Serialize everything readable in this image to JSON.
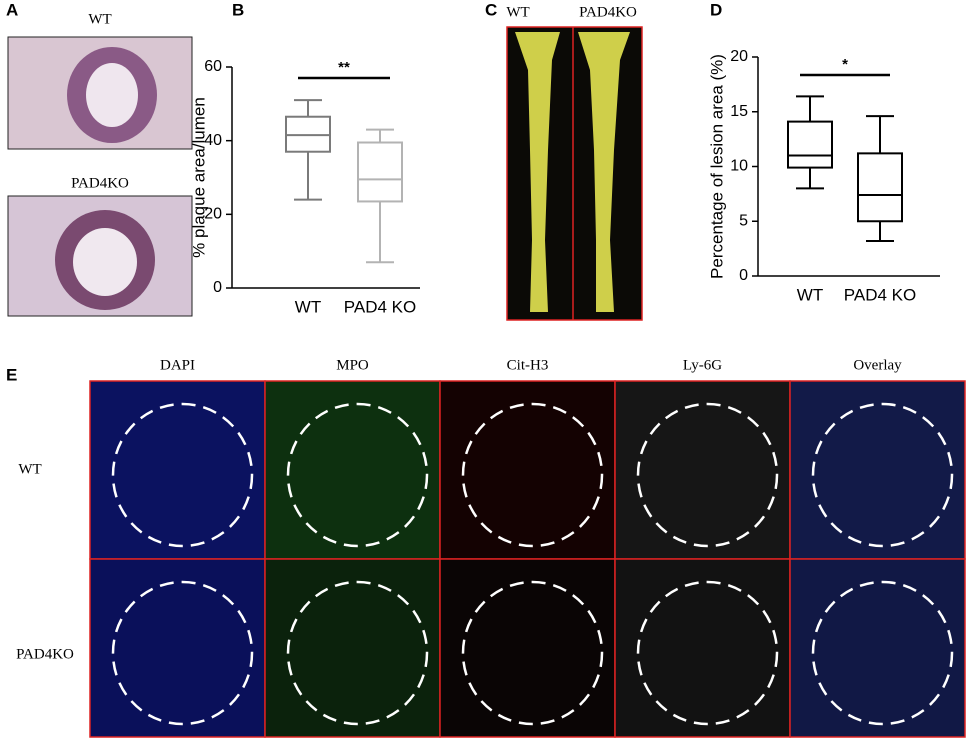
{
  "panels": {
    "letters": [
      "A",
      "B",
      "C",
      "D",
      "E"
    ],
    "a": {
      "labels": [
        "WT",
        "PAD4KO"
      ]
    },
    "c": {
      "labels": [
        "WT",
        "PAD4KO"
      ]
    },
    "e": {
      "columns": [
        "DAPI",
        "MPO",
        "Cit-H3",
        "Ly-6G",
        "Overlay"
      ],
      "rows": [
        "WT",
        "PAD4KO"
      ]
    }
  },
  "chart_data": [
    {
      "type": "box",
      "ylabel": "% plaque area/lumen",
      "categories": [
        "WT",
        "PAD4 KO"
      ],
      "stats": [
        {
          "min": 24,
          "q1": 37,
          "median": 41.5,
          "q3": 46.5,
          "max": 51
        },
        {
          "min": 7,
          "q1": 23.5,
          "median": 29.5,
          "q3": 39.5,
          "max": 43
        }
      ],
      "colors": [
        "#7a7a7a",
        "#b3b3b3"
      ],
      "ylim": [
        0,
        60
      ],
      "yticks": [
        0,
        20,
        40,
        60
      ],
      "significance": "**"
    },
    {
      "type": "box",
      "ylabel": "Percentage of lesion area (%)",
      "categories": [
        "WT",
        "PAD4 KO"
      ],
      "stats": [
        {
          "min": 8,
          "q1": 9.9,
          "median": 11,
          "q3": 14.1,
          "max": 16.4
        },
        {
          "min": 3.2,
          "q1": 5,
          "median": 7.4,
          "q3": 11.2,
          "max": 14.6
        }
      ],
      "colors": [
        "#000000",
        "#000000"
      ],
      "ylim": [
        0,
        20
      ],
      "yticks": [
        0,
        5,
        10,
        15,
        20
      ],
      "significance": "*"
    }
  ]
}
